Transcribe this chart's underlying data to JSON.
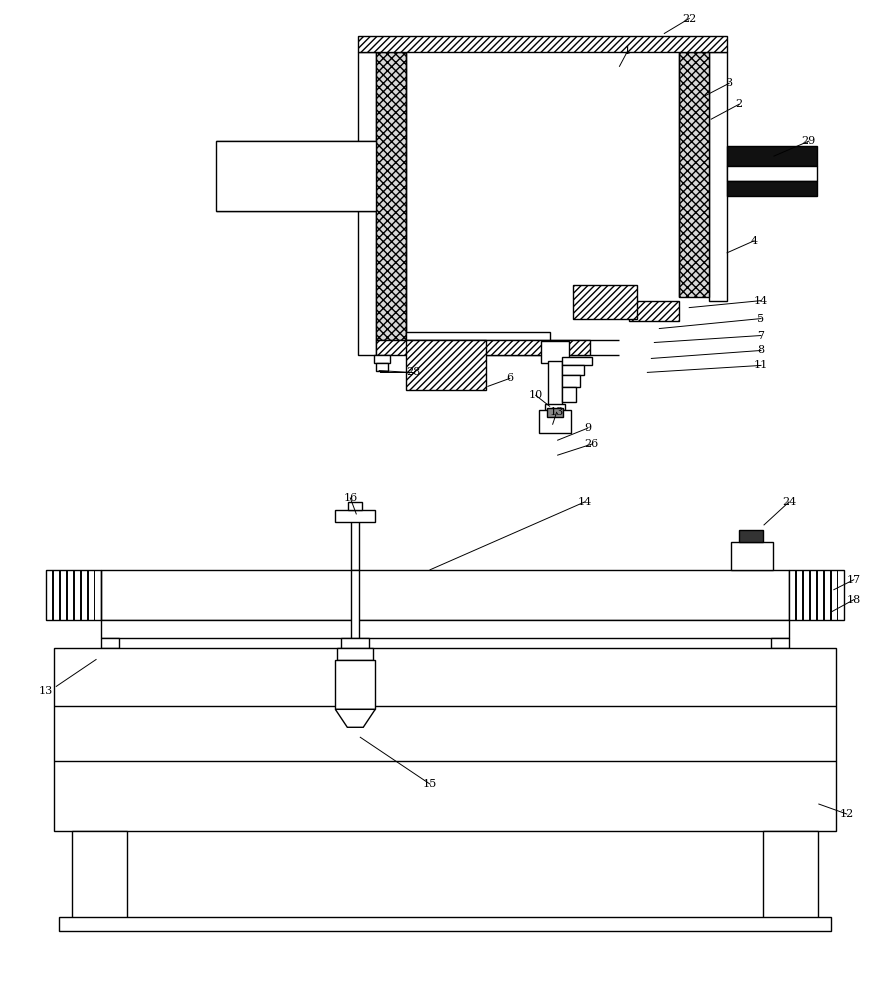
{
  "bg_color": "#ffffff",
  "line_color": "#000000",
  "fig_width": 8.9,
  "fig_height": 10.0
}
